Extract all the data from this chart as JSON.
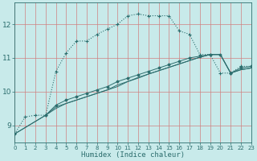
{
  "xlabel": "Humidex (Indice chaleur)",
  "bg_color": "#c8eaea",
  "grid_color": "#d08080",
  "line_color": "#2d6e6e",
  "xlim": [
    0,
    23
  ],
  "ylim": [
    8.5,
    12.65
  ],
  "yticks": [
    9,
    10,
    11,
    12
  ],
  "xticks": [
    0,
    1,
    2,
    3,
    4,
    5,
    6,
    7,
    8,
    9,
    10,
    11,
    12,
    13,
    14,
    15,
    16,
    17,
    18,
    19,
    20,
    21,
    22,
    23
  ],
  "line1_x": [
    0,
    1,
    2,
    3,
    4,
    5,
    6,
    7,
    8,
    9,
    10,
    11,
    12,
    13,
    14,
    15,
    16,
    17,
    18,
    19,
    20,
    21,
    22,
    23
  ],
  "line1_y": [
    8.75,
    9.25,
    9.3,
    9.3,
    10.6,
    11.15,
    11.5,
    11.5,
    11.7,
    11.85,
    12.0,
    12.25,
    12.3,
    12.25,
    12.25,
    12.25,
    11.8,
    11.7,
    11.1,
    11.1,
    10.55,
    10.55,
    10.75,
    10.75
  ],
  "line2_x": [
    0,
    3,
    4,
    5,
    6,
    7,
    8,
    9,
    10,
    11,
    12,
    13,
    14,
    15,
    16,
    17,
    18,
    19,
    20,
    21,
    22,
    23
  ],
  "line2_y": [
    8.75,
    9.3,
    9.6,
    9.75,
    9.85,
    9.95,
    10.05,
    10.15,
    10.3,
    10.4,
    10.5,
    10.6,
    10.7,
    10.8,
    10.9,
    11.0,
    11.05,
    11.1,
    11.1,
    10.55,
    10.7,
    10.75
  ],
  "line3_x": [
    0,
    3,
    4,
    5,
    6,
    7,
    8,
    9,
    10,
    11,
    12,
    13,
    14,
    15,
    16,
    17,
    18,
    19,
    20,
    21,
    22,
    23
  ],
  "line3_y": [
    8.75,
    9.3,
    9.55,
    9.65,
    9.75,
    9.85,
    9.95,
    10.05,
    10.2,
    10.3,
    10.42,
    10.52,
    10.62,
    10.72,
    10.82,
    10.92,
    11.02,
    11.1,
    11.1,
    10.55,
    10.65,
    10.7
  ],
  "line4_x": [
    3,
    4,
    5,
    6,
    7,
    8,
    9,
    10,
    11,
    12,
    13,
    14,
    15,
    16,
    17,
    18,
    19,
    20,
    21,
    22,
    23
  ],
  "line4_y": [
    9.3,
    9.5,
    9.65,
    9.75,
    9.85,
    9.95,
    10.05,
    10.15,
    10.3,
    10.4,
    10.52,
    10.62,
    10.72,
    10.82,
    10.92,
    11.02,
    11.1,
    11.1,
    10.55,
    10.65,
    10.7
  ]
}
